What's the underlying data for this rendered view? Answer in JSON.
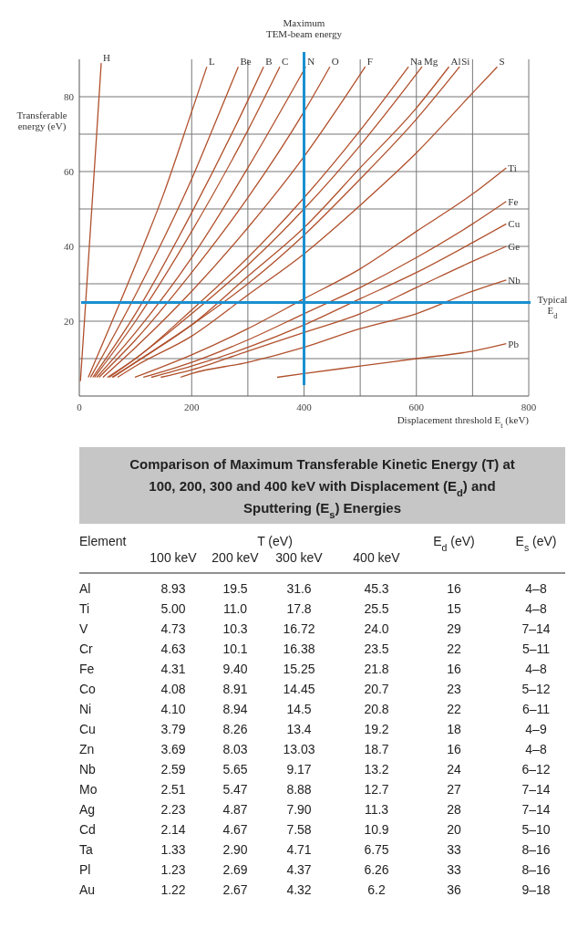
{
  "chart_data": [
    {
      "type": "line",
      "xlabel": "Displacement threshold E$_{t}$ (keV)",
      "ylabel": "Transferable energy (eV)",
      "xlim": [
        0,
        800
      ],
      "ylim": [
        0,
        90
      ],
      "xticks": [
        0,
        200,
        {
          "value": 300,
          "label": null
        },
        400,
        {
          "value": 500,
          "label": null
        },
        600,
        {
          "value": 700,
          "label": null
        },
        800
      ],
      "yticks": [
        {
          "value": 0,
          "label": null
        },
        {
          "value": 10,
          "label": null
        },
        20,
        {
          "value": 30,
          "label": null
        },
        40,
        {
          "value": 50,
          "label": null
        },
        60,
        {
          "value": 70,
          "label": null
        },
        80
      ],
      "grid": true,
      "ref_lines": [
        {
          "axis": "x",
          "value": 400,
          "label": "Maximum TEM-beam energy",
          "color": "#1a8fd0"
        },
        {
          "axis": "y",
          "value": 25,
          "label": "Typical E$_{d}$",
          "color": "#1a8fd0"
        }
      ],
      "series": [
        {
          "name": "H",
          "color": "#b0502c",
          "x": [
            2,
            10,
            20,
            30,
            39
          ],
          "values": [
            4,
            22,
            45,
            68,
            89
          ]
        },
        {
          "name": "L",
          "color": "#b0502c",
          "x": [
            16,
            50,
            100,
            150,
            200,
            227
          ],
          "values": [
            5,
            17,
            35,
            54,
            76,
            88
          ]
        },
        {
          "name": "Be",
          "color": "#b0502c",
          "x": [
            20,
            50,
            100,
            150,
            200,
            250,
            283
          ],
          "values": [
            5,
            13,
            27,
            42,
            58,
            76,
            88
          ]
        },
        {
          "name": "B",
          "color": "#b0502c",
          "x": [
            24,
            100,
            200,
            300,
            328
          ],
          "values": [
            5,
            22,
            49,
            79,
            88
          ]
        },
        {
          "name": "C",
          "color": "#b0502c",
          "x": [
            27,
            100,
            200,
            300,
            357
          ],
          "values": [
            5,
            20,
            44,
            71,
            88
          ]
        },
        {
          "name": "N",
          "color": "#b0502c",
          "x": [
            31,
            100,
            200,
            300,
            403
          ],
          "values": [
            5,
            17,
            37,
            61,
            88
          ]
        },
        {
          "name": "O",
          "color": "#b0502c",
          "x": [
            35,
            100,
            200,
            300,
            400,
            446
          ],
          "values": [
            5,
            15,
            33,
            53,
            76,
            88
          ]
        },
        {
          "name": "F",
          "color": "#b0502c",
          "x": [
            42,
            100,
            200,
            300,
            400,
            509
          ],
          "values": [
            5,
            13,
            28,
            45,
            64,
            88
          ]
        },
        {
          "name": "Na",
          "color": "#b0502c",
          "x": [
            50,
            100,
            200,
            300,
            400,
            500,
            586
          ],
          "values": [
            5,
            10,
            23,
            37,
            53,
            71,
            88
          ]
        },
        {
          "name": "Mg",
          "color": "#b0502c",
          "x": [
            53,
            100,
            200,
            300,
            400,
            500,
            610
          ],
          "values": [
            5,
            10,
            22,
            35,
            50,
            67,
            88
          ]
        },
        {
          "name": "Al",
          "color": "#b0502c",
          "x": [
            58,
            100,
            200,
            300,
            400,
            500,
            600,
            658
          ],
          "values": [
            5,
            9,
            19,
            32,
            45,
            61,
            77,
            88
          ]
        },
        {
          "name": "Si",
          "color": "#b0502c",
          "x": [
            60,
            100,
            200,
            300,
            400,
            500,
            600,
            677
          ],
          "values": [
            5,
            9,
            19,
            30,
            43,
            58,
            74,
            88
          ]
        },
        {
          "name": "S",
          "color": "#b0502c",
          "x": [
            68,
            100,
            200,
            300,
            400,
            500,
            600,
            700,
            744
          ],
          "values": [
            5,
            8,
            16,
            27,
            38,
            51,
            65,
            81,
            88
          ]
        },
        {
          "name": "Ti",
          "color": "#b0502c",
          "x": [
            99,
            200,
            300,
            400,
            500,
            600,
            700,
            760
          ],
          "values": [
            5,
            11,
            18,
            26,
            34,
            44,
            54,
            61
          ]
        },
        {
          "name": "Fe",
          "color": "#b0502c",
          "x": [
            114,
            200,
            300,
            400,
            500,
            600,
            700,
            760
          ],
          "values": [
            5,
            9,
            15,
            22,
            29,
            37,
            46,
            52
          ]
        },
        {
          "name": "Cu",
          "color": "#b0502c",
          "x": [
            128,
            200,
            300,
            400,
            500,
            600,
            700,
            760
          ],
          "values": [
            5,
            8,
            13,
            19,
            26,
            33,
            41,
            46
          ]
        },
        {
          "name": "Ge",
          "color": "#b0502c",
          "x": [
            145,
            200,
            300,
            400,
            500,
            600,
            700,
            760
          ],
          "values": [
            5,
            7,
            12,
            17,
            22,
            29,
            36,
            40
          ]
        },
        {
          "name": "Nb",
          "color": "#b0502c",
          "x": [
            180,
            200,
            300,
            400,
            500,
            600,
            700,
            760
          ],
          "values": [
            5,
            6,
            9,
            13,
            18,
            22,
            28,
            31
          ]
        },
        {
          "name": "Pb",
          "color": "#b0502c",
          "x": [
            352,
            400,
            500,
            600,
            700,
            760
          ],
          "values": [
            5,
            6,
            8,
            10,
            12,
            14
          ]
        }
      ]
    },
    {
      "type": "other",
      "title": "Comparison of Maximum Transferable Kinetic Energy (T) at 100, 200, 300 and 400 keV with Displacement (E$_{d}$) and Sputtering (E$_{s}$) Energies",
      "xlabel": "Element",
      "legend_title": "T (eV)",
      "categories": [
        "Al",
        "Ti",
        "V",
        "Cr",
        "Fe",
        "Co",
        "Ni",
        "Cu",
        "Zn",
        "Nb",
        "Mo",
        "Ag",
        "Cd",
        "Ta",
        "Pl",
        "Au"
      ],
      "series": [
        {
          "name": "100 keV",
          "values": [
            8.93,
            5,
            4.73,
            4.63,
            4.31,
            4.08,
            4.1,
            3.79,
            3.69,
            2.59,
            2.51,
            2.23,
            2.14,
            1.33,
            1.23,
            1.22
          ],
          "value_labels": [
            "8.93",
            "5.00",
            "4.73",
            "4.63",
            "4.31",
            "4.08",
            "4.10",
            "3.79",
            "3.69",
            "2.59",
            "2.51",
            "2.23",
            "2.14",
            "1.33",
            "1.23",
            "1.22"
          ]
        },
        {
          "name": "200 keV",
          "values": [
            19.5,
            11,
            10.3,
            10.1,
            9.4,
            8.91,
            8.94,
            8.26,
            8.03,
            5.65,
            5.47,
            4.87,
            4.67,
            2.9,
            2.69,
            2.67
          ],
          "value_labels": [
            "19.5",
            "11.0",
            "10.3",
            "10.1",
            "9.40",
            "8.91",
            "8.94",
            "8.26",
            "8.03",
            "5.65",
            "5.47",
            "4.87",
            "4.67",
            "2.90",
            "2.69",
            "2.67"
          ]
        },
        {
          "name": "300 keV",
          "values": [
            31.6,
            17.8,
            16.72,
            16.38,
            15.25,
            14.45,
            14.5,
            13.4,
            13.03,
            9.17,
            8.88,
            7.9,
            7.58,
            4.71,
            4.37,
            4.32
          ],
          "value_labels": [
            "31.6",
            "17.8",
            "16.72",
            "16.38",
            "15.25",
            "14.45",
            "14.5",
            "13.4",
            "13.03",
            "9.17",
            "8.88",
            "7.90",
            "7.58",
            "4.71",
            "4.37",
            "4.32"
          ]
        },
        {
          "name": "400 keV",
          "values": [
            45.3,
            25.5,
            24,
            23.5,
            21.8,
            20.7,
            20.8,
            19.2,
            18.7,
            13.2,
            12.7,
            11.3,
            10.9,
            6.75,
            6.26,
            6.2
          ],
          "value_labels": [
            "45.3",
            "25.5",
            "24.0",
            "23.5",
            "21.8",
            "20.7",
            "20.8",
            "19.2",
            "18.7",
            "13.2",
            "12.7",
            "11.3",
            "10.9",
            "6.75",
            "6.26",
            "6.2"
          ]
        },
        {
          "name": "E$_{d}$ (eV)",
          "values": [
            16,
            15,
            29,
            22,
            16,
            23,
            22,
            18,
            16,
            24,
            27,
            28,
            20,
            33,
            33,
            36
          ],
          "value_labels": [
            "16",
            "15",
            "29",
            "22",
            "16",
            "23",
            "22",
            "18",
            "16",
            "24",
            "27",
            "28",
            "20",
            "33",
            "33",
            "36"
          ]
        },
        {
          "name": "E$_{s}$ (eV)",
          "values": [
            null,
            null,
            null,
            null,
            null,
            null,
            null,
            null,
            null,
            null,
            null,
            null,
            null,
            null,
            null,
            null
          ],
          "value_labels": [
            "4–8",
            "4–8",
            "7–14",
            "5–11",
            "4–8",
            "5–12",
            "6–11",
            "4–9",
            "4–8",
            "6–12",
            "7–14",
            "7–14",
            "5–10",
            "8–16",
            "8–16",
            "9–18"
          ]
        }
      ]
    }
  ]
}
